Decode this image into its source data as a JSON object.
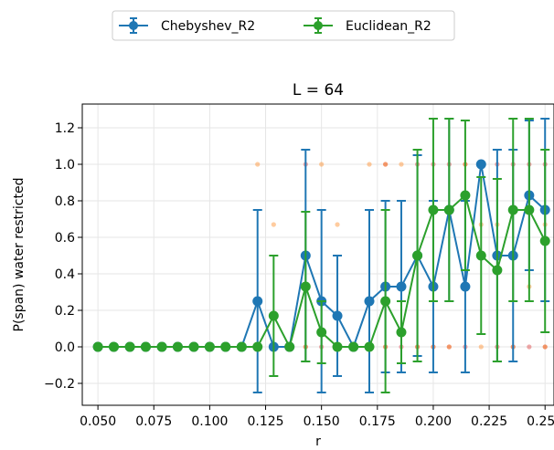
{
  "chart_data": {
    "type": "scatter",
    "title": "L = 64",
    "xlabel": "r",
    "ylabel": "P(span) water restricted",
    "xlim": [
      0.043,
      0.254
    ],
    "ylim": [
      -0.32,
      1.33
    ],
    "x_ticks": [
      "0.050",
      "0.075",
      "0.100",
      "0.125",
      "0.150",
      "0.175",
      "0.200",
      "0.225",
      "0.250"
    ],
    "x_tick_values": [
      0.05,
      0.075,
      0.1,
      0.125,
      0.15,
      0.175,
      0.2,
      0.225,
      0.25
    ],
    "y_ticks": [
      "−0.2",
      "0.0",
      "0.2",
      "0.4",
      "0.6",
      "0.8",
      "1.0",
      "1.2"
    ],
    "y_tick_values": [
      -0.2,
      0.0,
      0.2,
      0.4,
      0.6,
      0.8,
      1.0,
      1.2
    ],
    "grid": true,
    "legend_position": "top-center, outside plot",
    "x": [
      0.05,
      0.0571,
      0.0643,
      0.0714,
      0.0786,
      0.0857,
      0.0929,
      0.1,
      0.1071,
      0.1143,
      0.1214,
      0.1286,
      0.1357,
      0.1429,
      0.15,
      0.1571,
      0.1643,
      0.1714,
      0.1786,
      0.1857,
      0.1929,
      0.2,
      0.2071,
      0.2143,
      0.2214,
      0.2286,
      0.2357,
      0.2429,
      0.25
    ],
    "series": [
      {
        "name": "Chebyshev_R2",
        "color": "#1f77b4",
        "values": [
          0,
          0,
          0,
          0,
          0,
          0,
          0,
          0,
          0,
          0,
          0.25,
          0,
          0,
          0.5,
          0.25,
          0.17,
          0,
          0.25,
          0.33,
          0.33,
          0.5,
          0.33,
          0.75,
          0.33,
          1.0,
          0.5,
          0.5,
          0.83,
          0.75
        ],
        "errors": [
          0,
          0,
          0,
          0,
          0,
          0,
          0,
          0,
          0,
          0,
          0.5,
          0,
          0,
          0.58,
          0.5,
          0.33,
          0,
          0.5,
          0.47,
          0.47,
          0.55,
          0.47,
          0.5,
          0.47,
          0,
          0.58,
          0.58,
          0.41,
          0.5
        ]
      },
      {
        "name": "Euclidean_R2",
        "color": "#2ca02c",
        "values": [
          0,
          0,
          0,
          0,
          0,
          0,
          0,
          0,
          0,
          0,
          0,
          0.17,
          0,
          0.33,
          0.08,
          0,
          0,
          0,
          0.25,
          0.08,
          0.5,
          0.75,
          0.75,
          0.83,
          0.5,
          0.42,
          0.75,
          0.75,
          0.58
        ],
        "errors": [
          0,
          0,
          0,
          0,
          0,
          0,
          0,
          0,
          0,
          0,
          0,
          0.33,
          0,
          0.41,
          0.17,
          0,
          0,
          0,
          0.5,
          0.17,
          0.58,
          0.5,
          0.5,
          0.41,
          0.43,
          0.5,
          0.5,
          0.5,
          0.5
        ]
      }
    ],
    "raw_points": [
      {
        "name": "Chebyshev_R2 raw",
        "color": "#d62728",
        "points": [
          [
            0.1214,
            0
          ],
          [
            0.1429,
            0
          ],
          [
            0.1429,
            1
          ],
          [
            0.15,
            0
          ],
          [
            0.1571,
            0
          ],
          [
            0.1714,
            0
          ],
          [
            0.1786,
            0
          ],
          [
            0.1786,
            1
          ],
          [
            0.1857,
            0
          ],
          [
            0.1929,
            0
          ],
          [
            0.1929,
            1
          ],
          [
            0.2,
            0
          ],
          [
            0.2,
            1
          ],
          [
            0.2071,
            0
          ],
          [
            0.2071,
            1
          ],
          [
            0.2143,
            0
          ],
          [
            0.2143,
            1
          ],
          [
            0.2214,
            1
          ],
          [
            0.2286,
            0
          ],
          [
            0.2286,
            1
          ],
          [
            0.2357,
            0
          ],
          [
            0.2357,
            1
          ],
          [
            0.2429,
            0
          ],
          [
            0.2429,
            1
          ],
          [
            0.25,
            0
          ],
          [
            0.25,
            1
          ]
        ]
      },
      {
        "name": "Euclidean_R2 raw",
        "color": "#ff7f0e",
        "points": [
          [
            0.1214,
            1
          ],
          [
            0.1286,
            0.67
          ],
          [
            0.1429,
            0
          ],
          [
            0.15,
            1
          ],
          [
            0.1571,
            0.67
          ],
          [
            0.1714,
            1
          ],
          [
            0.1786,
            0
          ],
          [
            0.1786,
            1
          ],
          [
            0.1857,
            1
          ],
          [
            0.1929,
            0
          ],
          [
            0.2,
            0
          ],
          [
            0.2071,
            0
          ],
          [
            0.2143,
            1
          ],
          [
            0.2214,
            0
          ],
          [
            0.2214,
            0.67
          ],
          [
            0.2286,
            0.67
          ],
          [
            0.2357,
            0
          ],
          [
            0.2429,
            0.33
          ],
          [
            0.25,
            0
          ],
          [
            0.25,
            0.67
          ]
        ]
      }
    ]
  }
}
